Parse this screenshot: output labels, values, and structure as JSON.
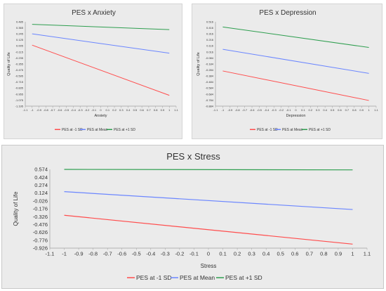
{
  "chart_data": [
    {
      "type": "line",
      "title": "PES x Anxiety",
      "xlabel": "Anxiety",
      "ylabel": "Quality of Life",
      "xlim": [
        -1.1,
        1.1
      ],
      "ylim": [
        -1.195,
        0.485
      ],
      "xticks": [
        "-1.1",
        "-1",
        "-0.9",
        "-0.8",
        "-0.7",
        "-0.6",
        "-0.5",
        "-0.4",
        "-0.3",
        "-0.2",
        "-0.1",
        "0",
        "0.1",
        "0.2",
        "0.3",
        "0.4",
        "0.5",
        "0.6",
        "0.7",
        "0.8",
        "0.9",
        "1",
        "1.1"
      ],
      "yticks": [
        "0.485",
        "0.365",
        "0.245",
        "0.125",
        "0.005",
        "-0.115",
        "-0.235",
        "-0.355",
        "-0.475",
        "-0.595",
        "-0.715",
        "-0.835",
        "-0.955",
        "-1.075",
        "-1.195"
      ],
      "x": [
        -1,
        1
      ],
      "series": [
        {
          "name": "PES at -1 SD",
          "color": "#ff4d4d",
          "values": [
            0.02,
            -0.98
          ]
        },
        {
          "name": "PES at Mean",
          "color": "#6b86ff",
          "values": [
            0.245,
            -0.14
          ]
        },
        {
          "name": "PES at +1 SD",
          "color": "#2e9e4f",
          "values": [
            0.435,
            0.33
          ]
        }
      ],
      "grid": false,
      "legend": "bottom"
    },
    {
      "type": "line",
      "title": "PES x Depression",
      "xlabel": "Depression",
      "ylabel": "Quality of Life",
      "xlim": [
        -1.1,
        1.1
      ],
      "ylim": [
        -0.884,
        0.516
      ],
      "xticks": [
        "-1.1",
        "-1",
        "-0.9",
        "-0.8",
        "-0.7",
        "-0.6",
        "-0.5",
        "-0.4",
        "-0.3",
        "-0.2",
        "-0.1",
        "0",
        "0.1",
        "0.2",
        "0.3",
        "0.4",
        "0.5",
        "0.6",
        "0.7",
        "0.8",
        "0.9",
        "1",
        "1.1"
      ],
      "yticks": [
        "0.516",
        "0.416",
        "0.316",
        "0.216",
        "0.116",
        "0.016",
        "-0.084",
        "-0.184",
        "-0.284",
        "-0.384",
        "-0.484",
        "-0.584",
        "-0.684",
        "-0.784",
        "-0.884"
      ],
      "x": [
        -1,
        1
      ],
      "series": [
        {
          "name": "PES at -1 SD",
          "color": "#ff4d4d",
          "values": [
            -0.3,
            -0.79
          ]
        },
        {
          "name": "PES at Mean",
          "color": "#6b86ff",
          "values": [
            0.06,
            -0.34
          ]
        },
        {
          "name": "PES at +1 SD",
          "color": "#2e9e4f",
          "values": [
            0.43,
            0.09
          ]
        }
      ],
      "grid": false,
      "legend": "bottom"
    },
    {
      "type": "line",
      "title": "PES x Stress",
      "xlabel": "Stress",
      "ylabel": "Quality of Life",
      "xlim": [
        -1.1,
        1.1
      ],
      "ylim": [
        -0.926,
        0.574
      ],
      "xticks": [
        "-1.1",
        "-1",
        "-0.9",
        "-0.8",
        "-0.7",
        "-0.6",
        "-0.5",
        "-0.4",
        "-0.3",
        "-0.2",
        "-0.1",
        "0",
        "0.1",
        "0.2",
        "0.3",
        "0.4",
        "0.5",
        "0.6",
        "0.7",
        "0.8",
        "0.9",
        "1",
        "1.1"
      ],
      "yticks": [
        "0.574",
        "0.424",
        "0.274",
        "0.124",
        "-0.026",
        "-0.176",
        "-0.326",
        "-0.476",
        "-0.626",
        "-0.776",
        "-0.926"
      ],
      "x": [
        -1,
        1
      ],
      "series": [
        {
          "name": "PES at -1 SD",
          "color": "#ff4d4d",
          "values": [
            -0.3,
            -0.85
          ]
        },
        {
          "name": "PES at Mean",
          "color": "#6b86ff",
          "values": [
            0.15,
            -0.19
          ]
        },
        {
          "name": "PES at +1 SD",
          "color": "#2e9e4f",
          "values": [
            0.574,
            0.565
          ]
        }
      ],
      "grid": false,
      "legend": "bottom"
    }
  ]
}
